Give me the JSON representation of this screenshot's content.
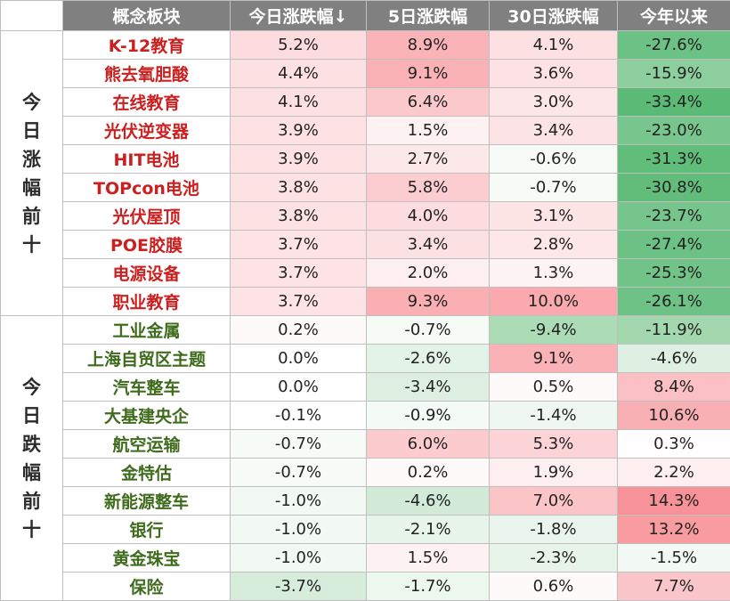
{
  "header": {
    "corner": "",
    "col_name": "概念板块",
    "col_today": "今日涨跌幅↓",
    "col_5d": "5日涨跌幅",
    "col_30d": "30日涨跌幅",
    "col_ytd": "今年以来"
  },
  "groups": [
    {
      "label": "今日涨幅前十",
      "type": "up",
      "rows": [
        {
          "name": "K-12教育",
          "today": "5.2%",
          "d5": "8.9%",
          "d30": "4.1%",
          "ytd": "-27.6%",
          "c_today": "#fcdcde",
          "c_d5": "#fab4b8",
          "c_d30": "#fce0e2",
          "c_ytd": "#6cc184"
        },
        {
          "name": "熊去氧胆酸",
          "today": "4.4%",
          "d5": "9.1%",
          "d30": "3.6%",
          "ytd": "-15.9%",
          "c_today": "#fce0e2",
          "c_d5": "#fab2b6",
          "c_d30": "#fce2e4",
          "c_ytd": "#8ccf9d"
        },
        {
          "name": "在线教育",
          "today": "4.1%",
          "d5": "6.4%",
          "d30": "3.0%",
          "ytd": "-33.4%",
          "c_today": "#fce0e2",
          "c_d5": "#fbc8cb",
          "c_d30": "#fde6e7",
          "c_ytd": "#5bbb76"
        },
        {
          "name": "光伏逆变器",
          "today": "3.9%",
          "d5": "1.5%",
          "d30": "3.4%",
          "ytd": "-23.0%",
          "c_today": "#fde1e3",
          "c_d5": "#fdf1f2",
          "c_d30": "#fce3e5",
          "c_ytd": "#78c68e"
        },
        {
          "name": "HIT电池",
          "today": "3.9%",
          "d5": "2.7%",
          "d30": "-0.6%",
          "ytd": "-31.3%",
          "c_today": "#fde1e3",
          "c_d5": "#fce7e9",
          "c_d30": "#f7fbf7",
          "c_ytd": "#61bd7a"
        },
        {
          "name": "TOPcon电池",
          "today": "3.8%",
          "d5": "5.8%",
          "d30": "-0.7%",
          "ytd": "-30.8%",
          "c_today": "#fde2e4",
          "c_d5": "#fbcdd0",
          "c_d30": "#f6fbf6",
          "c_ytd": "#62bd7b"
        },
        {
          "name": "光伏屋顶",
          "today": "3.8%",
          "d5": "4.0%",
          "d30": "3.1%",
          "ytd": "-23.7%",
          "c_today": "#fde2e4",
          "c_d5": "#fcdcde",
          "c_d30": "#fde5e6",
          "c_ytd": "#76c58c"
        },
        {
          "name": "POE胶膜",
          "today": "3.7%",
          "d5": "3.4%",
          "d30": "2.8%",
          "ytd": "-27.4%",
          "c_today": "#fde3e5",
          "c_d5": "#fce1e3",
          "c_d30": "#fde7e8",
          "c_ytd": "#6cc184"
        },
        {
          "name": "电源设备",
          "today": "3.7%",
          "d5": "2.0%",
          "d30": "1.3%",
          "ytd": "-25.3%",
          "c_today": "#fde3e5",
          "c_d5": "#fdeeef",
          "c_d30": "#fef3f4",
          "c_ytd": "#71c388"
        },
        {
          "name": "职业教育",
          "today": "3.7%",
          "d5": "9.3%",
          "d30": "10.0%",
          "ytd": "-26.1%",
          "c_today": "#fde3e5",
          "c_d5": "#faafb3",
          "c_d30": "#faaaaf",
          "c_ytd": "#6fc286"
        }
      ]
    },
    {
      "label": "今日跌幅前十",
      "type": "down",
      "rows": [
        {
          "name": "工业金属",
          "today": "0.2%",
          "d5": "-0.7%",
          "d30": "-9.4%",
          "ytd": "-11.9%",
          "c_today": "#fefafa",
          "c_d5": "#f6fbf6",
          "c_d30": "#acdcb6",
          "c_ytd": "#a3d8ae"
        },
        {
          "name": "上海自贸区主题",
          "today": "0.0%",
          "d5": "-2.6%",
          "d30": "9.1%",
          "ytd": "-4.6%",
          "c_today": "#ffffff",
          "c_d5": "#e4f3e7",
          "c_d30": "#fab2b6",
          "c_ytd": "#ddf0e1"
        },
        {
          "name": "汽车整车",
          "today": "0.0%",
          "d5": "-3.4%",
          "d30": "0.5%",
          "ytd": "8.4%",
          "c_today": "#ffffff",
          "c_d5": "#dcefe0",
          "c_d30": "#fefafa",
          "c_ytd": "#fac0c3"
        },
        {
          "name": "大基建央企",
          "today": "-0.1%",
          "d5": "-0.9%",
          "d30": "-1.4%",
          "ytd": "10.6%",
          "c_today": "#ffffff",
          "c_d5": "#f4faf5",
          "c_d30": "#eef8f0",
          "c_ytd": "#f9b0b4"
        },
        {
          "name": "航空运输",
          "today": "-0.7%",
          "d5": "6.0%",
          "d30": "5.3%",
          "ytd": "0.3%",
          "c_today": "#f6fbf7",
          "c_d5": "#fbcbce",
          "c_d30": "#fcd3d6",
          "c_ytd": "#fffdfd"
        },
        {
          "name": "金特估",
          "today": "-0.7%",
          "d5": "0.2%",
          "d30": "1.9%",
          "ytd": "2.2%",
          "c_today": "#f6fbf7",
          "c_d5": "#fefafa",
          "c_d30": "#fdeff0",
          "c_ytd": "#fdeff0"
        },
        {
          "name": "新能源整车",
          "today": "-1.0%",
          "d5": "-4.6%",
          "d30": "7.0%",
          "ytd": "14.3%",
          "c_today": "#f2f9f3",
          "c_d5": "#d2ebd8",
          "c_d30": "#fbc4c7",
          "c_ytd": "#f79398"
        },
        {
          "name": "银行",
          "today": "-1.0%",
          "d5": "-2.1%",
          "d30": "-1.8%",
          "ytd": "13.2%",
          "c_today": "#f2f9f3",
          "c_d5": "#e8f5eb",
          "c_d30": "#eaf6ed",
          "c_ytd": "#f89ca0"
        },
        {
          "name": "黄金珠宝",
          "today": "-1.0%",
          "d5": "1.5%",
          "d30": "-2.3%",
          "ytd": "-1.5%",
          "c_today": "#f2f9f3",
          "c_d5": "#fdf1f2",
          "c_d30": "#e7f4ea",
          "c_ytd": "#f3f9f4"
        },
        {
          "name": "保险",
          "today": "-3.7%",
          "d5": "-1.7%",
          "d30": "0.6%",
          "ytd": "7.7%",
          "c_today": "#d6eddc",
          "c_d5": "#ecf7ee",
          "c_d30": "#fefafa",
          "c_ytd": "#fbc6c9"
        }
      ]
    }
  ]
}
